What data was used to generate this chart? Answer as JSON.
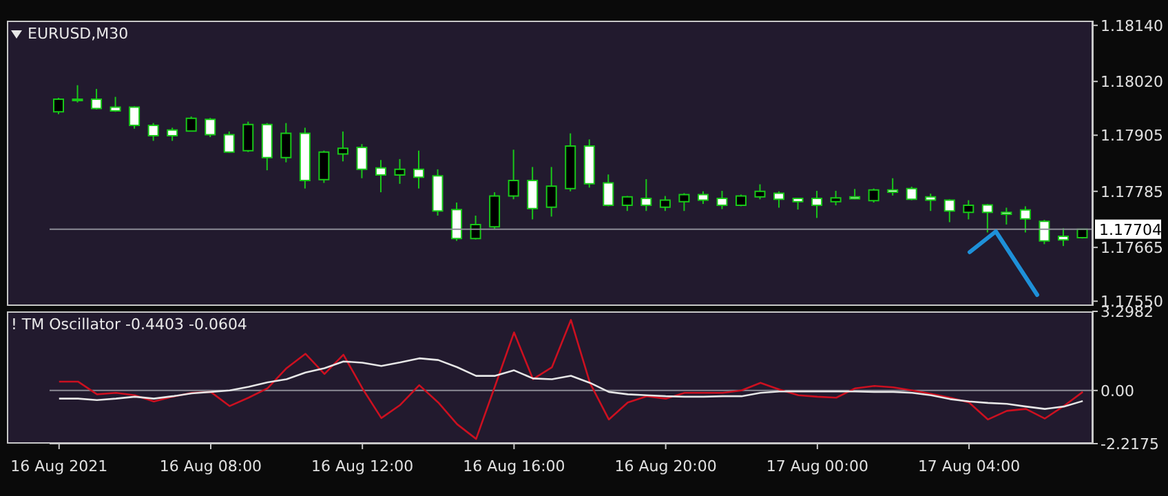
{
  "chart_data": [
    {
      "type": "candlestick",
      "title": "EURUSD,M30",
      "categories": [
        null,
        null,
        null,
        null,
        null,
        null,
        null,
        null,
        null,
        null,
        null,
        null,
        null,
        null,
        null,
        null,
        null,
        null,
        null,
        null,
        null,
        null,
        null,
        null,
        null,
        null,
        null,
        null,
        null,
        null,
        null,
        null,
        null,
        null,
        null,
        null,
        null,
        null,
        null,
        null,
        null,
        null,
        null,
        null,
        null,
        null,
        null,
        null,
        null,
        null,
        null,
        null,
        null,
        null,
        null
      ],
      "ohlc": [
        [
          1.17955,
          1.17985,
          1.1795,
          1.17982
        ],
        [
          1.1798,
          1.18012,
          1.17975,
          1.17982
        ],
        [
          1.17982,
          1.18004,
          1.1796,
          1.17962
        ],
        [
          1.17965,
          1.17987,
          1.17955,
          1.17957
        ],
        [
          1.17965,
          1.17967,
          1.17919,
          1.17926
        ],
        [
          1.17926,
          1.17931,
          1.17893,
          1.17904
        ],
        [
          1.17916,
          1.17921,
          1.17893,
          1.17904
        ],
        [
          1.17914,
          1.17945,
          1.17913,
          1.17941
        ],
        [
          1.17939,
          1.17942,
          1.17901,
          1.17906
        ],
        [
          1.17906,
          1.17913,
          1.17867,
          1.17869
        ],
        [
          1.17872,
          1.17934,
          1.17869,
          1.17928
        ],
        [
          1.17928,
          1.17931,
          1.1783,
          1.17857
        ],
        [
          1.17857,
          1.17931,
          1.17847,
          1.17909
        ],
        [
          1.17909,
          1.17921,
          1.17791,
          1.17808
        ],
        [
          1.1781,
          1.17872,
          1.17803,
          1.17869
        ],
        [
          1.17865,
          1.17913,
          1.17849,
          1.17877
        ],
        [
          1.17879,
          1.17886,
          1.17813,
          1.17832
        ],
        [
          1.17835,
          1.17852,
          1.17783,
          1.1782
        ],
        [
          1.1782,
          1.17854,
          1.17801,
          1.17832
        ],
        [
          1.17832,
          1.17872,
          1.17791,
          1.17815
        ],
        [
          1.17818,
          1.17832,
          1.17733,
          1.17743
        ],
        [
          1.17746,
          1.17761,
          1.17679,
          1.17684
        ],
        [
          1.17684,
          1.17733,
          1.17682,
          1.17714
        ],
        [
          1.17709,
          1.17783,
          1.17704,
          1.17775
        ],
        [
          1.17775,
          1.17874,
          1.17768,
          1.17808
        ],
        [
          1.17808,
          1.17837,
          1.17725,
          1.17748
        ],
        [
          1.17751,
          1.17837,
          1.17731,
          1.17796
        ],
        [
          1.17791,
          1.17909,
          1.17785,
          1.17882
        ],
        [
          1.17882,
          1.17896,
          1.17793,
          1.17801
        ],
        [
          1.17803,
          1.17821,
          1.17753,
          1.17755
        ],
        [
          1.17755,
          1.17775,
          1.17743,
          1.17773
        ],
        [
          1.1777,
          1.17811,
          1.17743,
          1.17755
        ],
        [
          1.17751,
          1.17775,
          1.17743,
          1.17766
        ],
        [
          1.17763,
          1.17781,
          1.17743,
          1.17778
        ],
        [
          1.17778,
          1.17785,
          1.17758,
          1.17766
        ],
        [
          1.1777,
          1.17786,
          1.17747,
          1.17755
        ],
        [
          1.17755,
          1.17778,
          1.17753,
          1.17775
        ],
        [
          1.17773,
          1.178,
          1.17768,
          1.17785
        ],
        [
          1.17781,
          1.17785,
          1.1775,
          1.17768
        ],
        [
          1.1777,
          1.17771,
          1.17746,
          1.17763
        ],
        [
          1.1777,
          1.17786,
          1.17728,
          1.17755
        ],
        [
          1.17763,
          1.17786,
          1.17755,
          1.17771
        ],
        [
          1.17773,
          1.1779,
          1.17768,
          1.17769
        ],
        [
          1.17765,
          1.17791,
          1.17761,
          1.17788
        ],
        [
          1.17788,
          1.17813,
          1.17776,
          1.17783
        ],
        [
          1.17791,
          1.17795,
          1.17766,
          1.17768
        ],
        [
          1.17773,
          1.1778,
          1.17743,
          1.17766
        ],
        [
          1.17766,
          1.17768,
          1.17719,
          1.17743
        ],
        [
          1.1774,
          1.17766,
          1.17725,
          1.17755
        ],
        [
          1.17756,
          1.17758,
          1.17697,
          1.1774
        ],
        [
          1.1774,
          1.1775,
          1.17714,
          1.17736
        ],
        [
          1.17745,
          1.17753,
          1.17697,
          1.17726
        ],
        [
          1.17721,
          1.17724,
          1.17672,
          1.17679
        ],
        [
          1.17689,
          1.17706,
          1.17668,
          1.17681
        ],
        [
          1.17686,
          1.17704,
          1.17684,
          1.17704
        ]
      ],
      "color": "#19c819",
      "ylim": [
        1.1754,
        1.1815
      ],
      "yticks": [
        {
          "value": 1.1814,
          "label": "1.18140"
        },
        {
          "value": 1.1802,
          "label": "1.18020"
        },
        1.17905,
        1.17785,
        1.17665,
        {
          "value": 1.1755,
          "label": "1.17550"
        }
      ],
      "ref_lines": [
        {
          "axis": "y",
          "value": 1.17704,
          "label": "1.17704",
          "color": "#8c8c96"
        }
      ],
      "tick_labels": "y"
    },
    {
      "type": "line",
      "title": "! TM Oscillator -0.4403 -0.0604",
      "categories": [
        "16 Aug 2021",
        null,
        null,
        null,
        null,
        null,
        null,
        null,
        "16 Aug 08:00",
        null,
        null,
        null,
        null,
        null,
        null,
        null,
        "16 Aug 12:00",
        null,
        null,
        null,
        null,
        null,
        null,
        null,
        "16 Aug 16:00",
        null,
        null,
        null,
        null,
        null,
        null,
        null,
        "16 Aug 20:00",
        null,
        null,
        null,
        null,
        null,
        null,
        null,
        "17 Aug 00:00",
        null,
        null,
        null,
        null,
        null,
        null,
        null,
        "17 Aug 04:00",
        null,
        null,
        null,
        null,
        null,
        null
      ],
      "series": [
        {
          "color": "#cc1020",
          "values": [
            0.37,
            0.37,
            -0.16,
            -0.1,
            -0.2,
            -0.46,
            -0.26,
            -0.1,
            -0.06,
            -0.65,
            -0.3,
            0.09,
            0.93,
            1.53,
            0.69,
            1.49,
            0.09,
            -1.15,
            -0.6,
            0.22,
            -0.5,
            -1.41,
            -2.02,
            0.19,
            2.42,
            0.47,
            0.97,
            2.94,
            0.32,
            -1.21,
            -0.5,
            -0.24,
            -0.34,
            -0.1,
            -0.1,
            -0.1,
            0,
            0.32,
            0.04,
            -0.2,
            -0.26,
            -0.3,
            0.09,
            0.19,
            0.13,
            0,
            -0.14,
            -0.3,
            -0.5,
            -1.21,
            -0.85,
            -0.77,
            -1.17,
            -0.65,
            -0.06
          ]
        },
        {
          "color": "#e6e6e6",
          "values": [
            -0.34,
            -0.34,
            -0.4,
            -0.34,
            -0.26,
            -0.34,
            -0.24,
            -0.12,
            -0.06,
            0,
            0.15,
            0.34,
            0.47,
            0.75,
            0.93,
            1.21,
            1.16,
            1.02,
            1.17,
            1.34,
            1.27,
            0.97,
            0.61,
            0.61,
            0.84,
            0.5,
            0.47,
            0.61,
            0.32,
            -0.06,
            -0.16,
            -0.2,
            -0.24,
            -0.26,
            -0.26,
            -0.24,
            -0.24,
            -0.1,
            -0.04,
            -0.04,
            -0.04,
            -0.04,
            -0.04,
            -0.06,
            -0.06,
            -0.1,
            -0.2,
            -0.36,
            -0.46,
            -0.52,
            -0.56,
            -0.67,
            -0.77,
            -0.67,
            -0.44
          ]
        }
      ],
      "ylim": [
        -2.2175,
        3.2982
      ],
      "yticks": [
        3.2982,
        {
          "value": 0,
          "label": "0.00"
        },
        -2.2175
      ],
      "ref_lines": [
        {
          "axis": "y",
          "value": 0,
          "color": "#8c8c96"
        }
      ]
    }
  ]
}
